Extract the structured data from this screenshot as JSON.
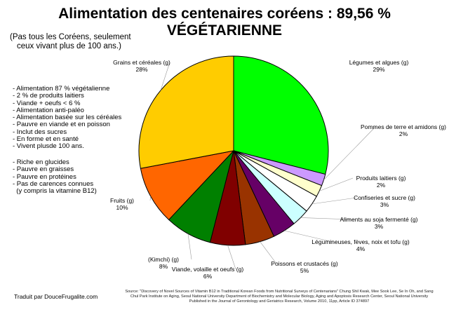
{
  "title": "Alimentation des centenaires coréens : 89,56 % VÉGÉTARIENNE",
  "subtitle": [
    "(Pas tous les Coréens, seulement",
    "ceux vivant plus de 100 ans.)"
  ],
  "notes_1": [
    "- Alimentation 87 % végétalienne",
    "- 2 % de produits laitiers",
    "- Viande + oeufs < 6 %",
    "- Alimentation anti-paléo",
    "- Alimentation basée sur les céréales",
    "- Pauvre en viande et en poisson",
    "- Inclut des sucres",
    "- En forme et en santé",
    "- Vivent plusde 100 ans."
  ],
  "notes_2": [
    "- Riche en glucides",
    "- Pauvre en graisses",
    "- Pauvre en protéines",
    "- Pas de carences connues",
    "  (y compris la vitamine B12)"
  ],
  "credit": "Traduit par DouceFrugalite.com",
  "source": [
    "Source: \"Discovery of Novel Sources of Vitamin B12 in Traditional Korean Foods from Nutritional Surveys of Centenarians\" Chung Shil Kwak, Mee Sook Lee, Se In Oh, and Sang",
    "Chul Park Institute on Aging, Seoul National University Department of Biochemistry and Molecular Biology, Aging and Apoptosis Research Center, Seoul National University",
    "Published in the Journal of Gerontology and Geriatrics Research, Volume 2010, 11pp, Article ID 374897"
  ],
  "chart_data": {
    "type": "pie",
    "start": "top",
    "direction": "clockwise",
    "slices": [
      {
        "label": "Légumes et algues (g)",
        "value": 29,
        "pct": "29%",
        "color": "#00FF00"
      },
      {
        "label": "Pommes de terre et amidons (g)",
        "value": 2,
        "pct": "2%",
        "color": "#CC99FF"
      },
      {
        "label": "Produits laitiers (g)",
        "value": 2,
        "pct": "2%",
        "color": "#FFFFCC"
      },
      {
        "label": "Confiseries et sucre (g)",
        "value": 3,
        "pct": "3%",
        "color": "#FFFFFF"
      },
      {
        "label": "Aliments au soja fermenté (g)",
        "value": 3,
        "pct": "3%",
        "color": "#CCFFFF"
      },
      {
        "label": "Légumineuses, fèves, noix et tofu (g)",
        "value": 4,
        "pct": "4%",
        "color": "#660066"
      },
      {
        "label": "Poissons et crustacés (g)",
        "value": 5,
        "pct": "5%",
        "color": "#993300"
      },
      {
        "label": "Viande, volaille et oeufs (g)",
        "value": 6,
        "pct": "6%",
        "color": "#800000"
      },
      {
        "label": "(Kimchi) (g)",
        "value": 8,
        "pct": "8%",
        "color": "#008000"
      },
      {
        "label": "Fruits (g)",
        "value": 10,
        "pct": "10%",
        "color": "#FF6600"
      },
      {
        "label": "Grains et céréales (g)",
        "value": 28,
        "pct": "28%",
        "color": "#FFCC00"
      }
    ]
  }
}
